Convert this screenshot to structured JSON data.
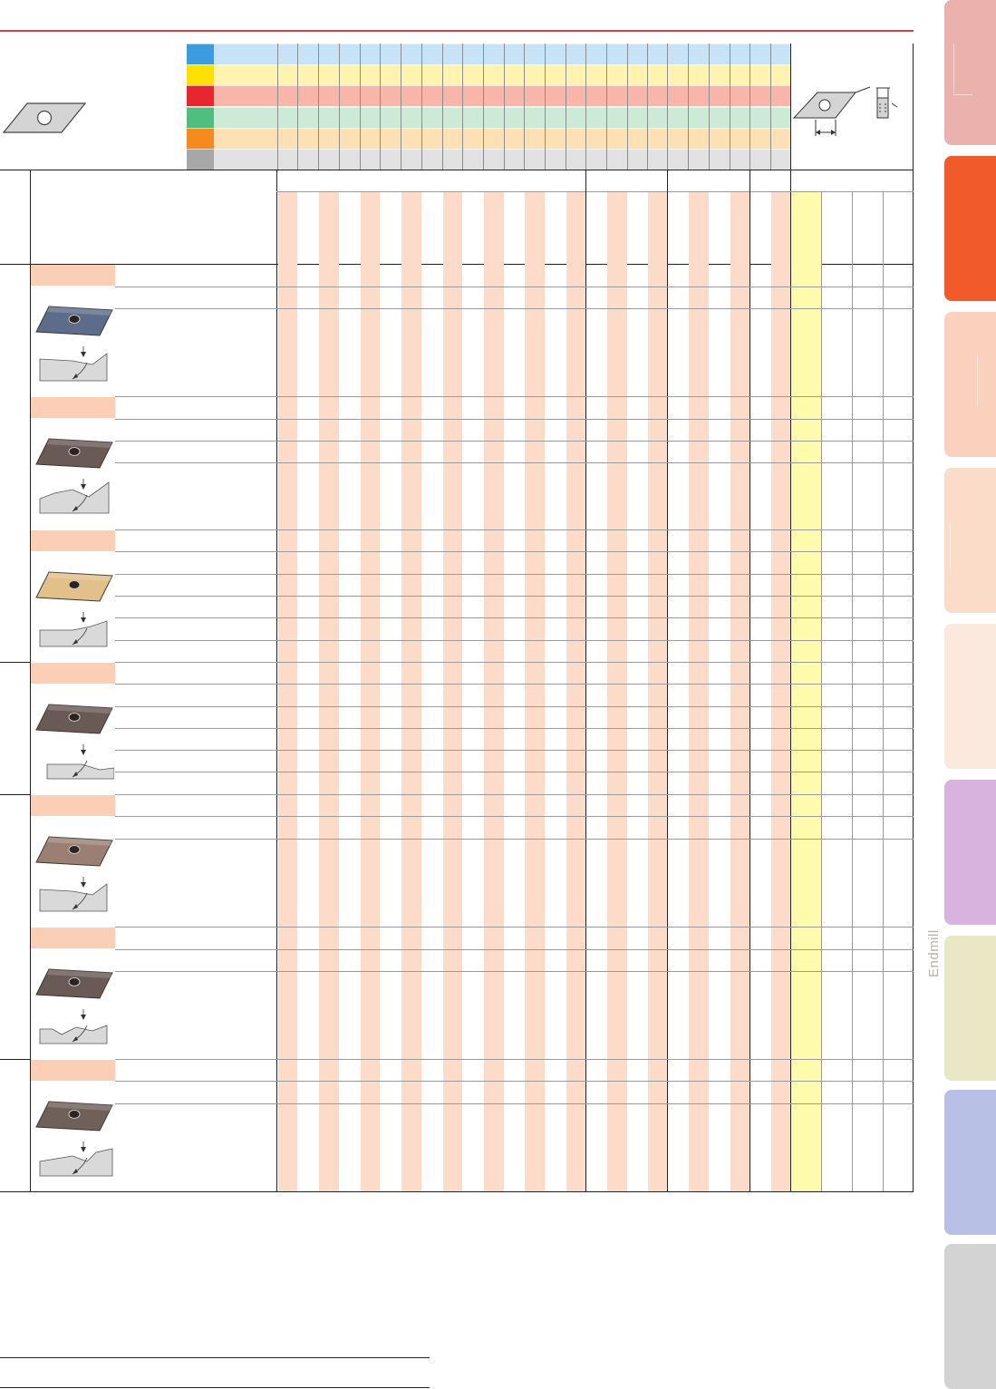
{
  "side_tabs": [
    {
      "key": "tab-1",
      "color": "#ebb1ac"
    },
    {
      "key": "tab-2",
      "color": "#f15a29"
    },
    {
      "key": "tab-3",
      "color": "#fad1bd"
    },
    {
      "key": "tab-4",
      "color": "#fbdcc9"
    },
    {
      "key": "tab-5",
      "color": "#fce9de"
    },
    {
      "key": "tab-6",
      "color": "#d7b3dd"
    },
    {
      "key": "tab-7",
      "color": "#e9e7c4",
      "label": "Endmill"
    },
    {
      "key": "tab-8",
      "color": "#b9c0e5"
    },
    {
      "key": "tab-9",
      "color": "#d3d3d3"
    }
  ],
  "material_bands": [
    {
      "swatch": "#3b9ce0",
      "band": "#c6e3f8"
    },
    {
      "swatch": "#ffe000",
      "band": "#fff3b0"
    },
    {
      "swatch": "#e8262f",
      "band": "#f8b6ab"
    },
    {
      "swatch": "#4fbf7f",
      "band": "#cbebd6"
    },
    {
      "swatch": "#f78a1e",
      "band": "#fde0b4"
    },
    {
      "swatch": "#a7a7a7",
      "band": "#e2e2e2"
    }
  ],
  "insert_icons": [
    {
      "name": "insert-blue-icon",
      "color": "#5d6c8a"
    },
    {
      "name": "insert-brown-icon",
      "color": "#6a5a55"
    },
    {
      "name": "insert-gold-icon",
      "color": "#e2c089"
    },
    {
      "name": "insert-brown-2-icon",
      "color": "#6a5a55"
    },
    {
      "name": "insert-bronze-icon",
      "color": "#9b7f72"
    },
    {
      "name": "insert-brown-3-icon",
      "color": "#6a5a55"
    },
    {
      "name": "insert-brown-4-icon",
      "color": "#6f605a"
    }
  ],
  "side_label": {
    "endmill": "Endmill"
  }
}
